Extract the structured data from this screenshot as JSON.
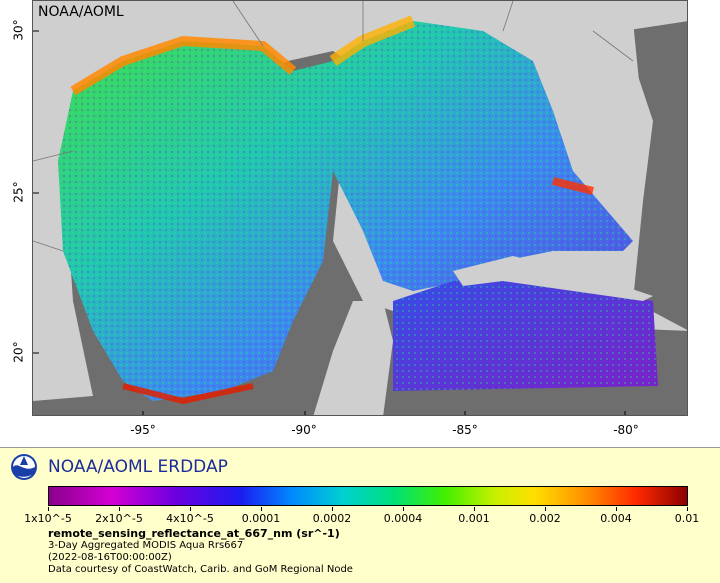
{
  "map": {
    "corner_label": "NOAA/AOML",
    "x_ticks": [
      "-95°",
      "-90°",
      "-85°",
      "-80°"
    ],
    "y_ticks": [
      "30°",
      "25°",
      "20°"
    ],
    "colors": {
      "land": "#cfcfcf",
      "no_data": "#6e6e6e"
    }
  },
  "legend": {
    "title": "NOAA/AOML ERDDAP",
    "colorbar_labels": [
      "1x10^-5",
      "2x10^-5",
      "4x10^-5",
      "0.0001",
      "0.0002",
      "0.0004",
      "0.001",
      "0.002",
      "0.004",
      "0.01"
    ],
    "variable": "remote_sensing_reflectance_at_667_nm (sr^-1)",
    "lines": [
      "3-Day Aggregated MODIS Aqua Rrs667",
      "(2022-08-16T00:00:00Z)",
      "Data courtesy of CoastWatch, Carib. and GoM Regional Node"
    ],
    "title_color": "#1c2b9a"
  }
}
